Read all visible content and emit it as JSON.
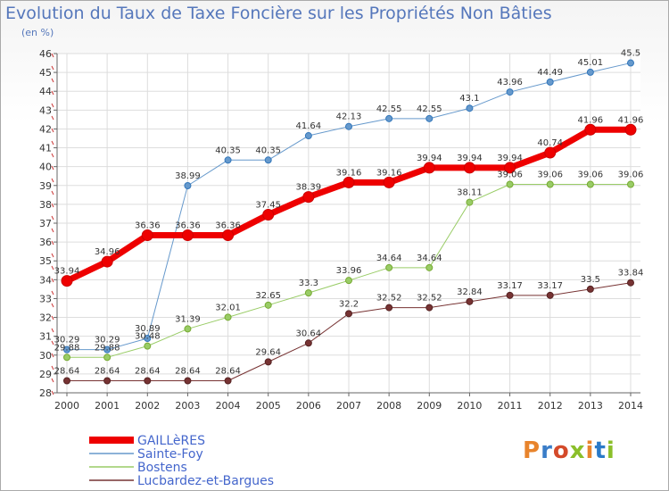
{
  "title": "Evolution du Taux de Taxe Foncière sur les Propriétés Non Bâties",
  "subtitle": "(en %)",
  "logo": {
    "text": "Proxiti",
    "colors": [
      "#e8842c",
      "#3a7dc8",
      "#d44a2a",
      "#8bbf2a",
      "#e8842c",
      "#2a7ac8",
      "#8bbf2a"
    ]
  },
  "chart_data": {
    "type": "line",
    "x": [
      "2000",
      "2001",
      "2002",
      "2003",
      "2004",
      "2005",
      "2006",
      "2007",
      "2008",
      "2009",
      "2010",
      "2011",
      "2012",
      "2013",
      "2014"
    ],
    "ylim": [
      28,
      46
    ],
    "yticks": [
      28,
      29,
      30,
      31,
      32,
      33,
      34,
      35,
      36,
      37,
      38,
      39,
      40,
      41,
      42,
      43,
      44,
      45,
      46
    ],
    "grid": true,
    "legend_position": "bottom-left",
    "series": [
      {
        "name": "GAILLèRES",
        "color": "#ee0000",
        "width": 7,
        "values": [
          33.94,
          34.96,
          36.36,
          36.36,
          36.36,
          37.45,
          38.39,
          39.16,
          39.16,
          39.94,
          39.94,
          39.94,
          40.74,
          41.96,
          41.96
        ],
        "labels": [
          "33.94",
          "34.96",
          "36.36",
          "36.36",
          "36.36",
          "37.45",
          "38.39",
          "39.16",
          "39.16",
          "39.94",
          "39.94",
          "39.94",
          "40.74",
          "41.96",
          "41.96"
        ]
      },
      {
        "name": "Sainte-Foy",
        "color": "#6699cc",
        "width": 1,
        "values": [
          30.29,
          30.29,
          30.89,
          38.99,
          40.35,
          40.35,
          41.64,
          42.13,
          42.55,
          42.55,
          43.1,
          43.96,
          44.49,
          45.01,
          45.5
        ],
        "labels": [
          "30.29",
          "30.29",
          "30.89",
          "38.99",
          "40.35",
          "40.35",
          "41.64",
          "42.13",
          "42.55",
          "42.55",
          "43.1",
          "43.96",
          "44.49",
          "45.01",
          "45.5"
        ]
      },
      {
        "name": "Bostens",
        "color": "#99cc66",
        "width": 1,
        "values": [
          29.88,
          29.88,
          30.48,
          31.39,
          32.01,
          32.65,
          33.3,
          33.96,
          34.64,
          34.64,
          38.11,
          39.06,
          39.06,
          39.06,
          39.06
        ],
        "labels": [
          "29.88",
          "29.88",
          "30.48",
          "31.39",
          "32.01",
          "32.65",
          "33.3",
          "33.96",
          "34.64",
          "34.64",
          "38.11",
          "39.06",
          "39.06",
          "39.06",
          "39.06"
        ]
      },
      {
        "name": "Lucbardez-et-Bargues",
        "color": "#773333",
        "width": 1,
        "values": [
          28.64,
          28.64,
          28.64,
          28.64,
          28.64,
          29.64,
          30.64,
          32.2,
          32.52,
          32.52,
          32.84,
          33.17,
          33.17,
          33.5,
          33.84
        ],
        "labels": [
          "28.64",
          "28.64",
          "28.64",
          "28.64",
          "28.64",
          "29.64",
          "30.64",
          "32.2",
          "32.52",
          "32.52",
          "32.84",
          "33.17",
          "33.17",
          "33.5",
          "33.84"
        ]
      }
    ]
  }
}
